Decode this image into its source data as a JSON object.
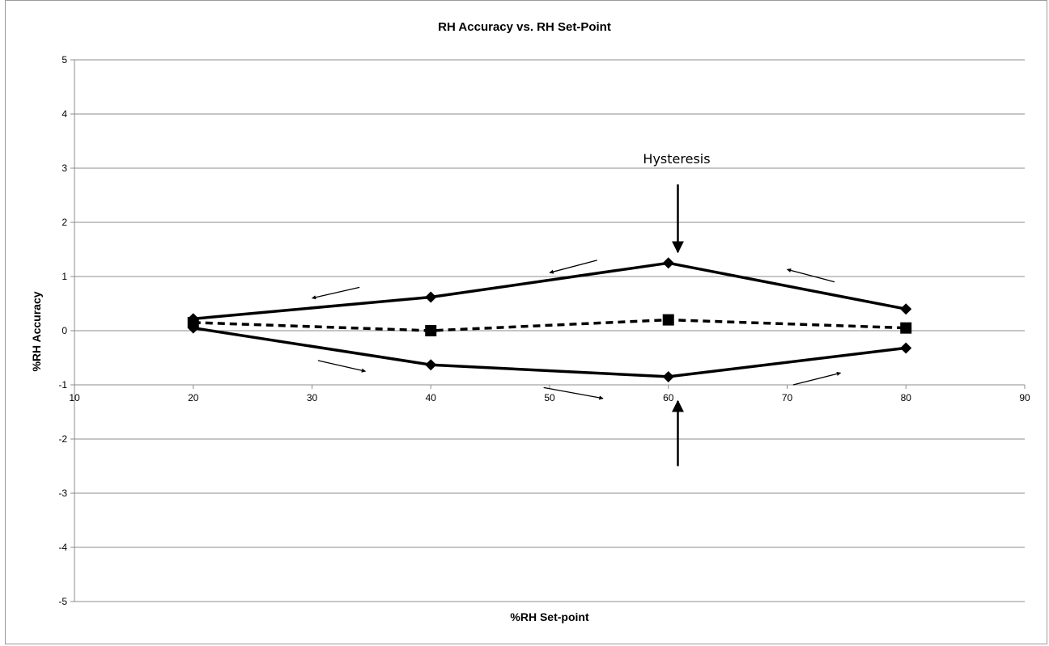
{
  "chart_data": {
    "type": "line",
    "title": "RH Accuracy vs. RH Set-Point",
    "xlabel": "%RH  Set-point",
    "ylabel": "%RH  Accuracy",
    "xlim": [
      10,
      90
    ],
    "ylim": [
      -5,
      5
    ],
    "x_ticks": [
      10,
      20,
      30,
      40,
      50,
      60,
      70,
      80,
      90
    ],
    "y_ticks": [
      5,
      4,
      3,
      2,
      1,
      0,
      -1,
      -2,
      -3,
      -4,
      -5
    ],
    "grid": "horizontal",
    "legend": "none",
    "series": [
      {
        "style": "solid",
        "marker": "diamond",
        "color": "#000000",
        "x": [
          20,
          40,
          60,
          80
        ],
        "y": [
          0.05,
          -0.63,
          -0.85,
          -0.32
        ]
      },
      {
        "style": "solid",
        "marker": "diamond",
        "color": "#000000",
        "x": [
          80,
          60,
          40,
          20
        ],
        "y": [
          0.4,
          1.25,
          0.62,
          0.22
        ]
      },
      {
        "style": "dashed",
        "marker": "square",
        "color": "#000000",
        "x": [
          20,
          40,
          60,
          80
        ],
        "y": [
          0.15,
          0.0,
          0.2,
          0.05
        ]
      }
    ],
    "annotations": [
      {
        "text": "Hysteresis"
      }
    ]
  }
}
